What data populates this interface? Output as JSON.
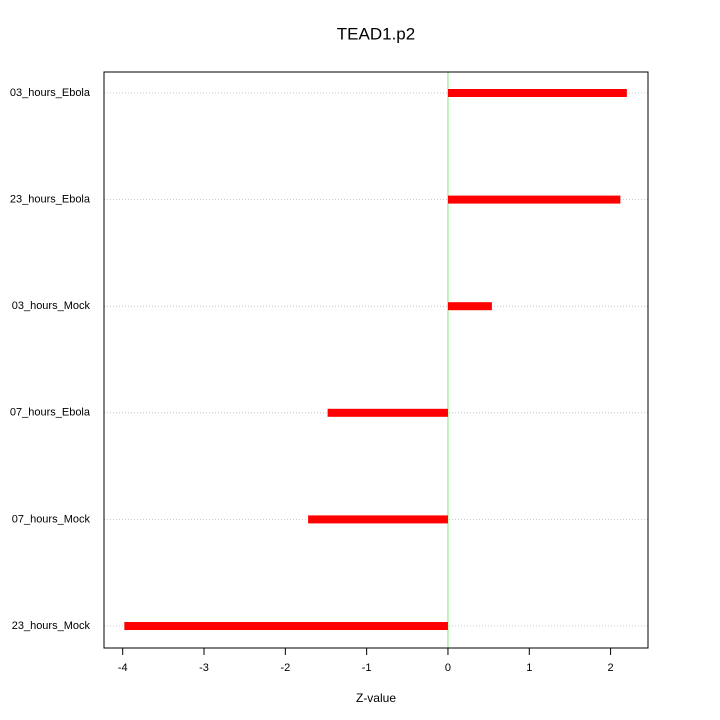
{
  "chart_data": {
    "type": "hbar",
    "title": "TEAD1.p2",
    "x_label": "Z-value",
    "categories": [
      "03_hours_Ebola",
      "23_hours_Ebola",
      "03_hours_Mock",
      "07_hours_Ebola",
      "07_hours_Mock",
      "23_hours_Mock"
    ],
    "values": [
      2.2,
      2.12,
      0.54,
      -1.48,
      -1.72,
      -3.98
    ],
    "color": "#ff0000",
    "zero_line_color": "#90ee90",
    "xlim": [
      -4.23,
      2.46
    ],
    "xticks": [
      -4,
      -3,
      -2,
      -1,
      0,
      1,
      2
    ],
    "grid": true
  }
}
